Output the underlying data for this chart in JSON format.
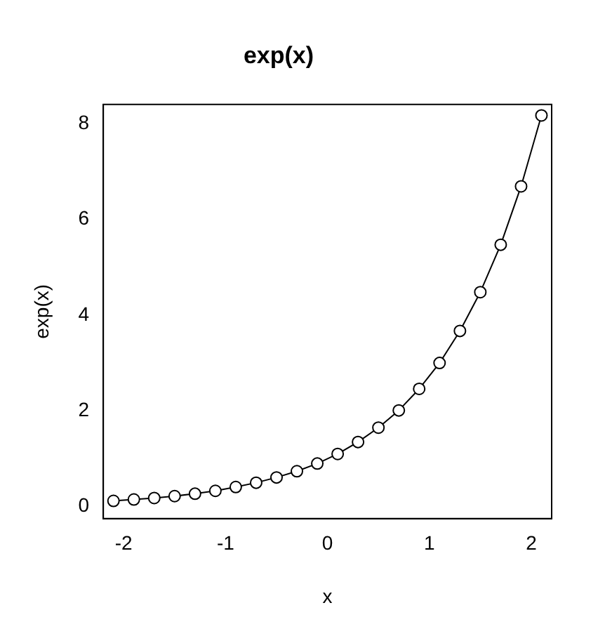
{
  "chart_data": {
    "type": "line",
    "title": "exp(x)",
    "xlabel": "x",
    "ylabel": "exp(x)",
    "x": [
      -2.1,
      -1.9,
      -1.7,
      -1.5,
      -1.3,
      -1.1,
      -0.9,
      -0.7,
      -0.5,
      -0.3,
      -0.1,
      0.1,
      0.3,
      0.5,
      0.7,
      0.9,
      1.1,
      1.3,
      1.5,
      1.7,
      1.9,
      2.1
    ],
    "series": [
      {
        "color": "#000000",
        "values": [
          0.12,
          0.15,
          0.18,
          0.22,
          0.27,
          0.33,
          0.41,
          0.5,
          0.61,
          0.74,
          0.9,
          1.1,
          1.35,
          1.65,
          2.01,
          2.46,
          3.0,
          3.67,
          4.48,
          5.47,
          6.69,
          8.17
        ]
      }
    ],
    "xlim": [
      -2.2,
      2.2
    ],
    "ylim": [
      -0.25,
      8.4
    ],
    "xticks": [
      -2,
      -1,
      0,
      1,
      2
    ],
    "yticks": [
      0,
      2,
      4,
      6,
      8
    ],
    "grid": false,
    "legend": false,
    "marker": "circle",
    "line_style": "solid"
  }
}
